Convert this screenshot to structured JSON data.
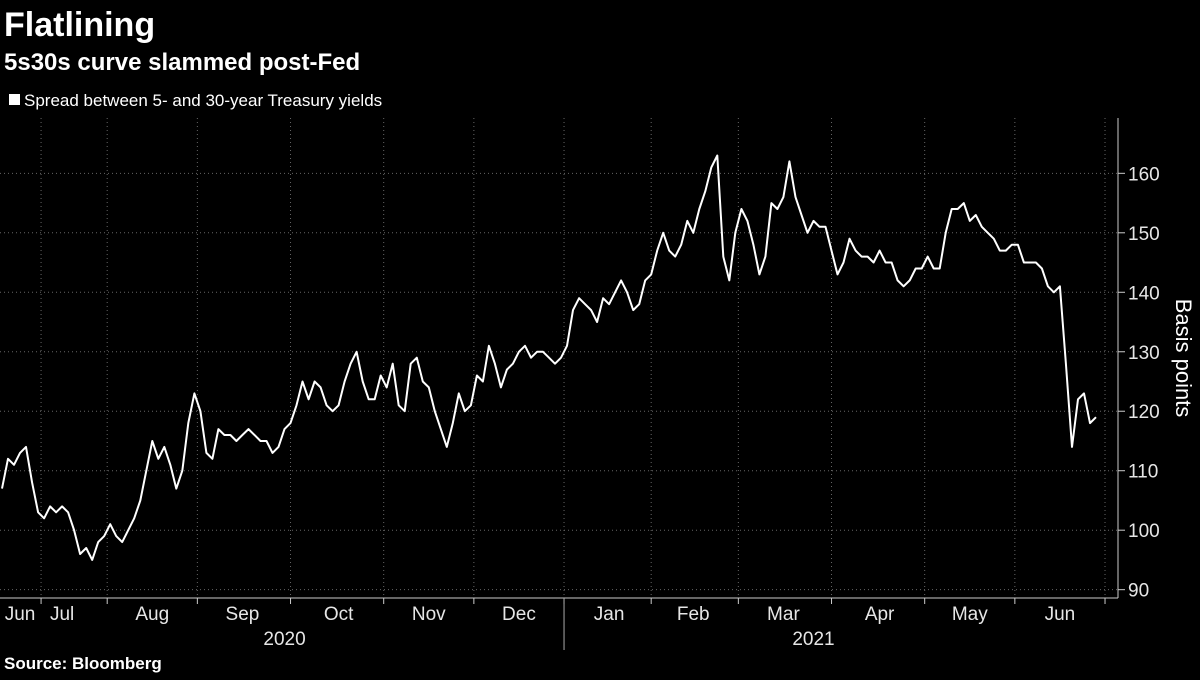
{
  "chart_data": {
    "type": "line",
    "title": "Flatlining",
    "subtitle": "5s30s curve slammed post-Fed",
    "y_label": "Basis points",
    "source": "Source: Bloomberg",
    "grid": true,
    "legend_position": "top-left",
    "categories": [
      null,
      null,
      null,
      "Jun",
      null,
      null,
      null,
      null,
      null,
      null,
      "Jul",
      null,
      null,
      null,
      null,
      null,
      null,
      null,
      null,
      null,
      null,
      null,
      null,
      null,
      null,
      "Aug",
      null,
      null,
      null,
      null,
      null,
      null,
      null,
      null,
      null,
      null,
      null,
      null,
      null,
      null,
      "Sep",
      null,
      null,
      null,
      null,
      null,
      null,
      null,
      null,
      null,
      null,
      null,
      null,
      null,
      null,
      null,
      "Oct",
      null,
      null,
      null,
      null,
      null,
      null,
      null,
      null,
      null,
      null,
      null,
      null,
      null,
      null,
      "Nov",
      null,
      null,
      null,
      null,
      null,
      null,
      null,
      null,
      null,
      null,
      null,
      null,
      null,
      null,
      "Dec",
      null,
      null,
      null,
      null,
      null,
      null,
      null,
      null,
      null,
      null,
      null,
      null,
      null,
      null,
      "Jan",
      null,
      null,
      null,
      null,
      null,
      null,
      null,
      null,
      null,
      null,
      null,
      null,
      null,
      "Feb",
      null,
      null,
      null,
      null,
      null,
      null,
      null,
      null,
      null,
      null,
      null,
      null,
      null,
      null,
      "Mar",
      null,
      null,
      null,
      null,
      null,
      null,
      null,
      null,
      null,
      null,
      null,
      null,
      null,
      null,
      null,
      "Apr",
      null,
      null,
      null,
      null,
      null,
      null,
      null,
      null,
      null,
      null,
      null,
      null,
      null,
      null,
      "May",
      null,
      null,
      null,
      null,
      null,
      null,
      null,
      null,
      null,
      null,
      null,
      null,
      null,
      null,
      "Jun",
      null,
      null,
      null,
      null,
      null,
      null
    ],
    "years": [
      null,
      null,
      null,
      null,
      null,
      null,
      null,
      null,
      null,
      null,
      null,
      null,
      null,
      null,
      null,
      null,
      null,
      null,
      null,
      null,
      null,
      null,
      null,
      null,
      null,
      null,
      null,
      null,
      null,
      null,
      null,
      null,
      null,
      null,
      null,
      null,
      null,
      null,
      null,
      null,
      null,
      null,
      null,
      null,
      null,
      null,
      null,
      "2020",
      null,
      null,
      null,
      null,
      null,
      null,
      null,
      null,
      null,
      null,
      null,
      null,
      null,
      null,
      null,
      null,
      null,
      null,
      null,
      null,
      null,
      null,
      null,
      null,
      null,
      null,
      null,
      null,
      null,
      null,
      null,
      null,
      null,
      null,
      null,
      null,
      null,
      null,
      null,
      null,
      null,
      null,
      null,
      null,
      null,
      null,
      null,
      null,
      null,
      null,
      null,
      null,
      null,
      null,
      null,
      null,
      null,
      null,
      null,
      null,
      null,
      null,
      null,
      null,
      null,
      null,
      null,
      null,
      null,
      null,
      null,
      null,
      null,
      null,
      null,
      null,
      null,
      null,
      null,
      null,
      null,
      null,
      null,
      null,
      null,
      null,
      null,
      "2021",
      null,
      null,
      null,
      null,
      null,
      null,
      null,
      null,
      null,
      null,
      null,
      null,
      null,
      null,
      null,
      null,
      null,
      null,
      null,
      null,
      null,
      null,
      null,
      null,
      null,
      null,
      null,
      null,
      null,
      null,
      null,
      null,
      null,
      null,
      null,
      null,
      null,
      null,
      null,
      null,
      null,
      null,
      null,
      null,
      null,
      null,
      null
    ],
    "series": [
      {
        "name": "Spread between 5- and 30-year Treasury yields",
        "color": "#ffffff",
        "values": [
          107,
          112,
          111,
          113,
          114,
          108,
          103,
          102,
          104,
          103,
          104,
          103,
          100,
          96,
          97,
          95,
          98,
          99,
          101,
          99,
          98,
          100,
          102,
          105,
          110,
          115,
          112,
          114,
          111,
          107,
          110,
          118,
          123,
          120,
          113,
          112,
          117,
          116,
          116,
          115,
          116,
          117,
          116,
          115,
          115,
          113,
          114,
          117,
          118,
          121,
          125,
          122,
          125,
          124,
          121,
          120,
          121,
          125,
          128,
          130,
          125,
          122,
          122,
          126,
          124,
          128,
          121,
          120,
          128,
          129,
          125,
          124,
          120,
          117,
          114,
          118,
          123,
          120,
          121,
          126,
          125,
          131,
          128,
          124,
          127,
          128,
          130,
          131,
          129,
          130,
          130,
          129,
          128,
          129,
          131,
          137,
          139,
          138,
          137,
          135,
          139,
          138,
          140,
          142,
          140,
          137,
          138,
          142,
          143,
          147,
          150,
          147,
          146,
          148,
          152,
          150,
          154,
          157,
          161,
          163,
          146,
          142,
          150,
          154,
          152,
          148,
          143,
          146,
          155,
          154,
          156,
          162,
          156,
          153,
          150,
          152,
          151,
          151,
          147,
          143,
          145,
          149,
          147,
          146,
          146,
          145,
          147,
          145,
          145,
          142,
          141,
          142,
          144,
          144,
          146,
          144,
          144,
          150,
          154,
          154,
          155,
          152,
          153,
          151,
          150,
          149,
          147,
          147,
          148,
          148,
          145,
          145,
          145,
          144,
          141,
          140,
          141,
          128,
          114,
          122,
          123,
          118,
          119
        ]
      }
    ],
    "ylim": [
      88.6,
      169.3
    ],
    "yticks": [
      90,
      100,
      110,
      120,
      130,
      140,
      150,
      160
    ]
  }
}
